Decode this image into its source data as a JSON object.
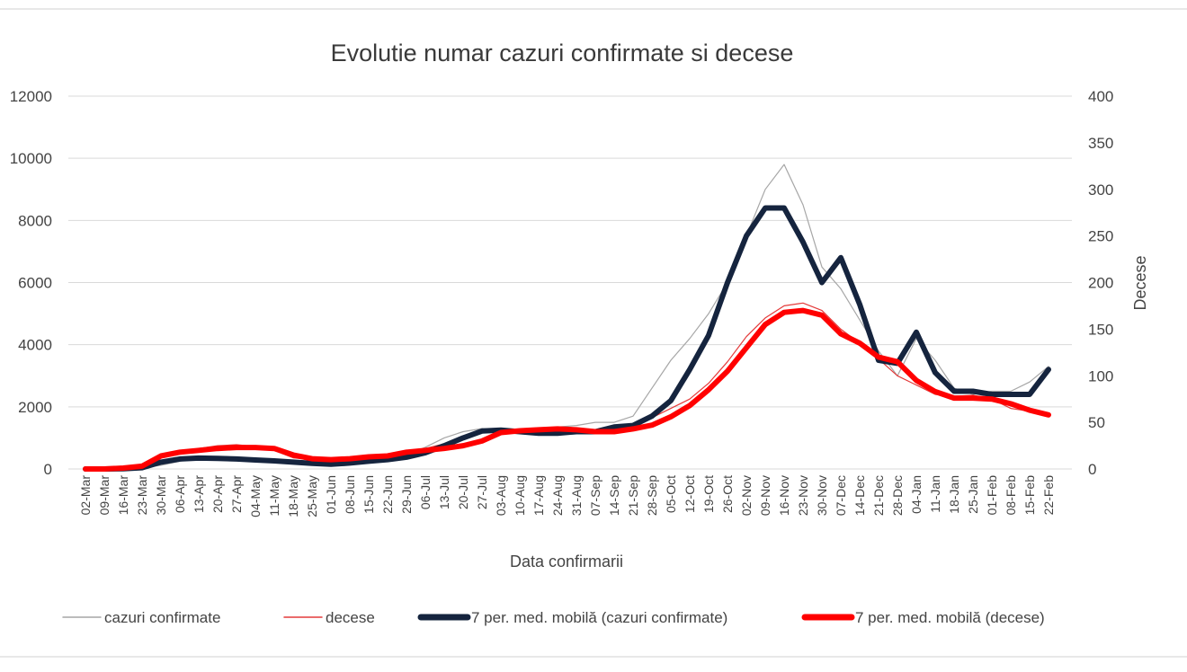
{
  "chart_data": {
    "type": "line",
    "title": "Evolutie numar cazuri confirmate si decese",
    "xlabel": "Data confirmarii",
    "ylabel": "",
    "y2label": "Decese",
    "ylim": [
      0,
      12000
    ],
    "yticks": [
      "0",
      "2000",
      "4000",
      "6000",
      "8000",
      "10000",
      "12000"
    ],
    "y2lim": [
      0,
      400
    ],
    "y2ticks": [
      "0",
      "50",
      "100",
      "150",
      "200",
      "250",
      "300",
      "350",
      "400"
    ],
    "grid": true,
    "legend_position": "bottom",
    "x_tick_labels": [
      "02-Mar",
      "09-Mar",
      "16-Mar",
      "23-Mar",
      "30-Mar",
      "06-Apr",
      "13-Apr",
      "20-Apr",
      "27-Apr",
      "04-May",
      "11-May",
      "18-May",
      "25-May",
      "01-Jun",
      "08-Jun",
      "15-Jun",
      "22-Jun",
      "29-Jun",
      "06-Jul",
      "13-Jul",
      "20-Jul",
      "27-Jul",
      "03-Aug",
      "10-Aug",
      "17-Aug",
      "24-Aug",
      "31-Aug",
      "07-Sep",
      "14-Sep",
      "21-Sep",
      "28-Sep",
      "05-Oct",
      "12-Oct",
      "19-Oct",
      "26-Oct",
      "02-Nov",
      "09-Nov",
      "16-Nov",
      "23-Nov",
      "30-Nov",
      "07-Dec",
      "14-Dec",
      "21-Dec",
      "28-Dec",
      "04-Jan",
      "11-Jan",
      "18-Jan",
      "25-Jan",
      "01-Feb",
      "08-Feb",
      "15-Feb",
      "22-Feb"
    ],
    "series": [
      {
        "name": "cazuri confirmate",
        "axis": "left",
        "color": "#a6a6a6",
        "style": "thin",
        "values": [
          0,
          0,
          20,
          40,
          120,
          250,
          380,
          350,
          320,
          300,
          250,
          200,
          180,
          160,
          200,
          260,
          320,
          450,
          700,
          1000,
          1200,
          1300,
          1250,
          1200,
          1300,
          1350,
          1400,
          1500,
          1500,
          1700,
          2600,
          3500,
          4200,
          5000,
          6000,
          7500,
          9000,
          9800,
          8500,
          6500,
          5800,
          4800,
          3800,
          3000,
          4200,
          3500,
          2600,
          2400,
          2500,
          2500,
          2800,
          3300
        ]
      },
      {
        "name": "decese",
        "axis": "right",
        "color": "#e43a3a",
        "style": "thin",
        "values": [
          0,
          0,
          0,
          5,
          12,
          18,
          22,
          25,
          26,
          24,
          20,
          12,
          10,
          8,
          10,
          13,
          16,
          20,
          22,
          27,
          35,
          40,
          42,
          42,
          44,
          45,
          40,
          42,
          42,
          48,
          55,
          65,
          75,
          92,
          115,
          142,
          162,
          175,
          178,
          170,
          150,
          135,
          118,
          100,
          90,
          80,
          78,
          79,
          75,
          65,
          62,
          58
        ]
      },
      {
        "name": "7 per. med. mobilă (cazuri confirmate)",
        "axis": "left",
        "color": "#15243e",
        "style": "thick",
        "values": [
          0,
          0,
          10,
          40,
          220,
          320,
          350,
          340,
          320,
          290,
          260,
          220,
          180,
          150,
          190,
          250,
          300,
          380,
          520,
          750,
          1000,
          1220,
          1250,
          1200,
          1150,
          1150,
          1200,
          1200,
          1350,
          1400,
          1700,
          2200,
          3200,
          4300,
          6000,
          7500,
          8400,
          8400,
          7300,
          6000,
          6800,
          5300,
          3500,
          3400,
          4400,
          3100,
          2500,
          2500,
          2400,
          2400,
          2400,
          3200
        ]
      },
      {
        "name": "7 per. med. mobilă (decese)",
        "axis": "right",
        "color": "#ff0000",
        "style": "thick",
        "values": [
          0,
          0,
          1,
          3,
          14,
          18,
          20,
          22,
          23,
          23,
          22,
          15,
          11,
          10,
          11,
          13,
          14,
          18,
          20,
          22,
          25,
          30,
          39,
          41,
          42,
          43,
          42,
          40,
          40,
          43,
          47,
          56,
          68,
          85,
          105,
          130,
          155,
          168,
          170,
          165,
          145,
          135,
          120,
          115,
          95,
          83,
          76,
          76,
          75,
          70,
          63,
          58
        ]
      }
    ]
  }
}
